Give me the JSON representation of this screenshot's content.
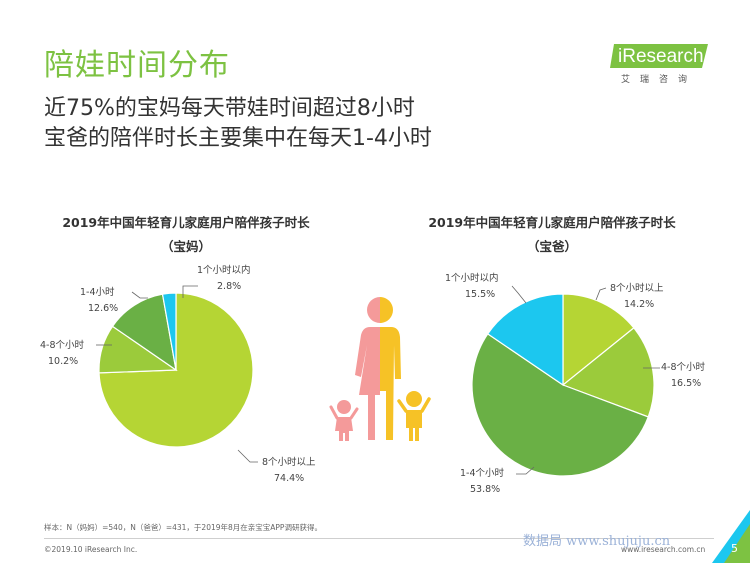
{
  "header": {
    "title": "陪娃时间分布",
    "subtitle_line1": "近75%的宝妈每天带娃时间超过8小时",
    "subtitle_line2": "宝爸的陪伴时长主要集中在每天1-4小时"
  },
  "logo": {
    "brand": "iResearch",
    "sub": "艾瑞咨询"
  },
  "colors": {
    "accent": "#7dc242",
    "c_under1": "#1cc7ef",
    "c_1to4": "#6ab045",
    "c_4to8": "#9bcb3b",
    "c_8plus": "#b5d534",
    "female": "#f49a9a",
    "male": "#f6c226"
  },
  "chart_data": [
    {
      "type": "pie",
      "title": "2019年中国年轻育儿家庭用户陪伴孩子时长",
      "subtitle": "（宝妈）",
      "slices": [
        {
          "name": "8个小时以上",
          "value": 74.4,
          "label": "74.4%"
        },
        {
          "name": "4-8个小时",
          "value": 10.2,
          "label": "10.2%"
        },
        {
          "name": "1-4小时",
          "value": 12.6,
          "label": "12.6%"
        },
        {
          "name": "1个小时以内",
          "value": 2.8,
          "label": "2.8%"
        }
      ]
    },
    {
      "type": "pie",
      "title": "2019年中国年轻育儿家庭用户陪伴孩子时长",
      "subtitle": "（宝爸）",
      "slices": [
        {
          "name": "8个小时以上",
          "value": 14.2,
          "label": "14.2%"
        },
        {
          "name": "4-8个小时",
          "value": 16.5,
          "label": "16.5%"
        },
        {
          "name": "1-4个小时",
          "value": 53.8,
          "label": "53.8%"
        },
        {
          "name": "1个小时以内",
          "value": 15.5,
          "label": "15.5%"
        }
      ]
    }
  ],
  "footer": {
    "note": "样本：N（妈妈）=540，N（爸爸）=431，于2019年8月在亲宝宝APP调研获得。",
    "copyright": "©2019.10 iResearch Inc.",
    "site": "www.iresearch.com.cn",
    "watermark": "数据局  www.shujuju.cn",
    "page": "5"
  }
}
